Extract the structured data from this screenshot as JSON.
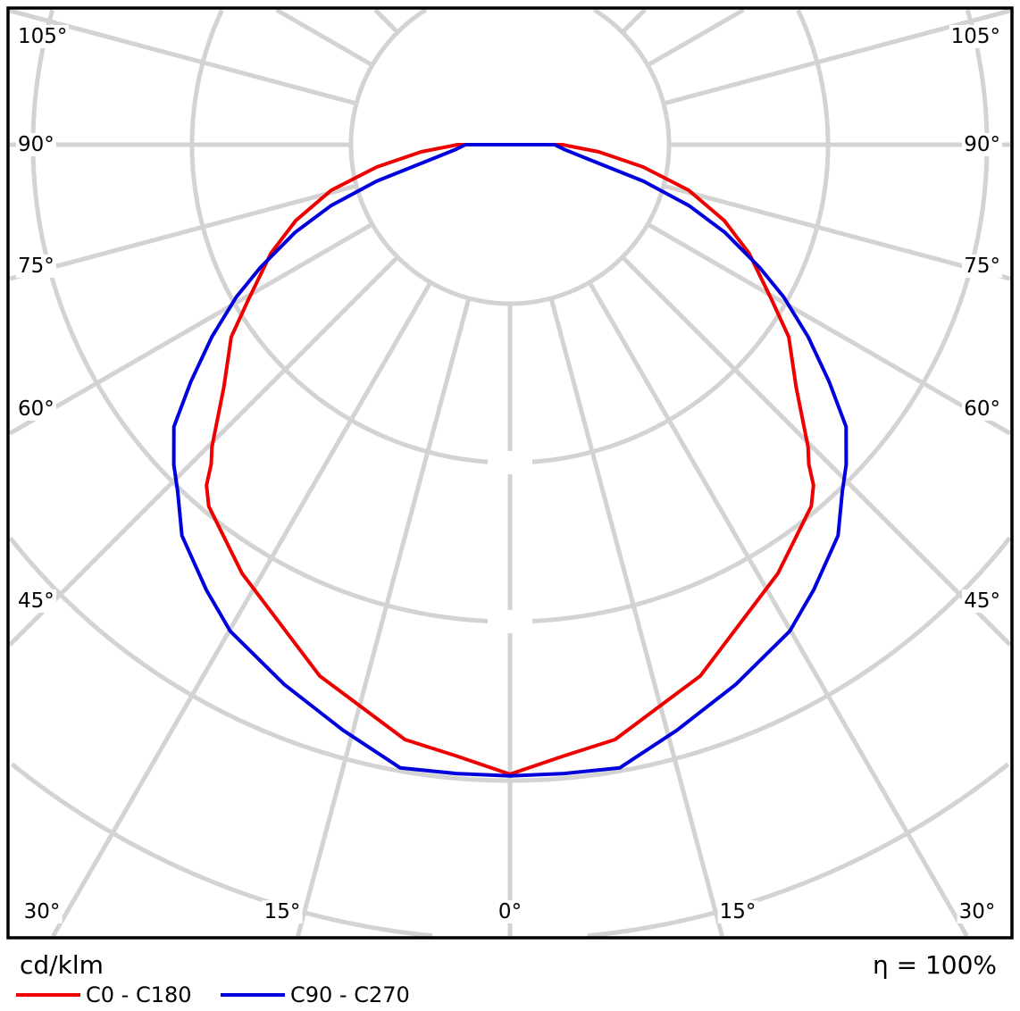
{
  "chart_data": {
    "type": "polar",
    "unit_label": "cd/klm",
    "efficiency_label": "η = 100%",
    "angle_labels": {
      "left": [
        "105°",
        "90°",
        "75°",
        "60°",
        "45°"
      ],
      "bottom": [
        "30°",
        "15°",
        "0°",
        "15°",
        "30°"
      ],
      "right": [
        "105°",
        "90°",
        "75°",
        "60°",
        "45°"
      ]
    },
    "grid": true,
    "grid_angle_step_deg": 15,
    "grid_rings": [
      1,
      2,
      3,
      4,
      5
    ],
    "legend_placement": "bottom-left",
    "series": [
      {
        "name": "C0 - C180",
        "color": "#ee0000",
        "points": [
          [
            0,
            3.96
          ],
          [
            5,
            3.86
          ],
          [
            10,
            3.8
          ],
          [
            19.7,
            3.55
          ],
          [
            32,
            3.18
          ],
          [
            39.8,
            2.96
          ],
          [
            41.7,
            2.87
          ],
          [
            43.1,
            2.75
          ],
          [
            44.6,
            2.67
          ],
          [
            49.7,
            2.36
          ],
          [
            55.4,
            2.13
          ],
          [
            59.2,
            1.92
          ],
          [
            65.6,
            1.65
          ],
          [
            70.5,
            1.43
          ],
          [
            75.7,
            1.16
          ],
          [
            80.5,
            0.85
          ],
          [
            85.4,
            0.56
          ],
          [
            90,
            0.33
          ]
        ]
      },
      {
        "name": "C90 - C270",
        "color": "#0000dd",
        "points": [
          [
            0,
            3.97
          ],
          [
            4.9,
            3.97
          ],
          [
            10,
            3.98
          ],
          [
            15.9,
            3.83
          ],
          [
            22.7,
            3.68
          ],
          [
            29.9,
            3.53
          ],
          [
            34.3,
            3.39
          ],
          [
            40,
            3.21
          ],
          [
            43.8,
            3.02
          ],
          [
            46.4,
            2.92
          ],
          [
            50,
            2.76
          ],
          [
            53.4,
            2.5
          ],
          [
            57.2,
            2.23
          ],
          [
            60.9,
            1.97
          ],
          [
            63.8,
            1.75
          ],
          [
            67.8,
            1.46
          ],
          [
            71.2,
            1.19
          ],
          [
            74.7,
            0.87
          ],
          [
            79.6,
            0.5
          ],
          [
            85.2,
            0.34
          ],
          [
            90,
            0.28
          ]
        ]
      }
    ]
  }
}
